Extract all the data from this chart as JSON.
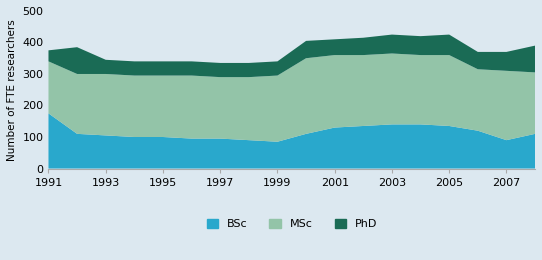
{
  "years": [
    1991,
    1992,
    1993,
    1994,
    1995,
    1996,
    1997,
    1998,
    1999,
    2000,
    2001,
    2002,
    2003,
    2004,
    2005,
    2006,
    2007,
    2008
  ],
  "bsc": [
    175,
    110,
    105,
    100,
    100,
    95,
    95,
    90,
    85,
    110,
    130,
    135,
    140,
    140,
    135,
    120,
    90,
    110
  ],
  "msc": [
    165,
    190,
    195,
    195,
    195,
    200,
    195,
    200,
    210,
    240,
    230,
    225,
    225,
    220,
    225,
    195,
    220,
    195
  ],
  "phd": [
    35,
    85,
    45,
    45,
    45,
    45,
    45,
    45,
    45,
    55,
    50,
    55,
    60,
    60,
    65,
    55,
    60,
    85
  ],
  "bsc_color": "#29a8cc",
  "msc_color": "#93c4a8",
  "phd_color": "#1a6b55",
  "bg_color": "#dce8f0",
  "ylabel": "Number of FTE researchers",
  "ylim": [
    0,
    500
  ],
  "yticks": [
    0,
    100,
    200,
    300,
    400,
    500
  ],
  "xtick_years": [
    1991,
    1993,
    1995,
    1997,
    1999,
    2001,
    2003,
    2005,
    2007
  ],
  "legend_labels": [
    "BSc",
    "MSc",
    "PhD"
  ]
}
